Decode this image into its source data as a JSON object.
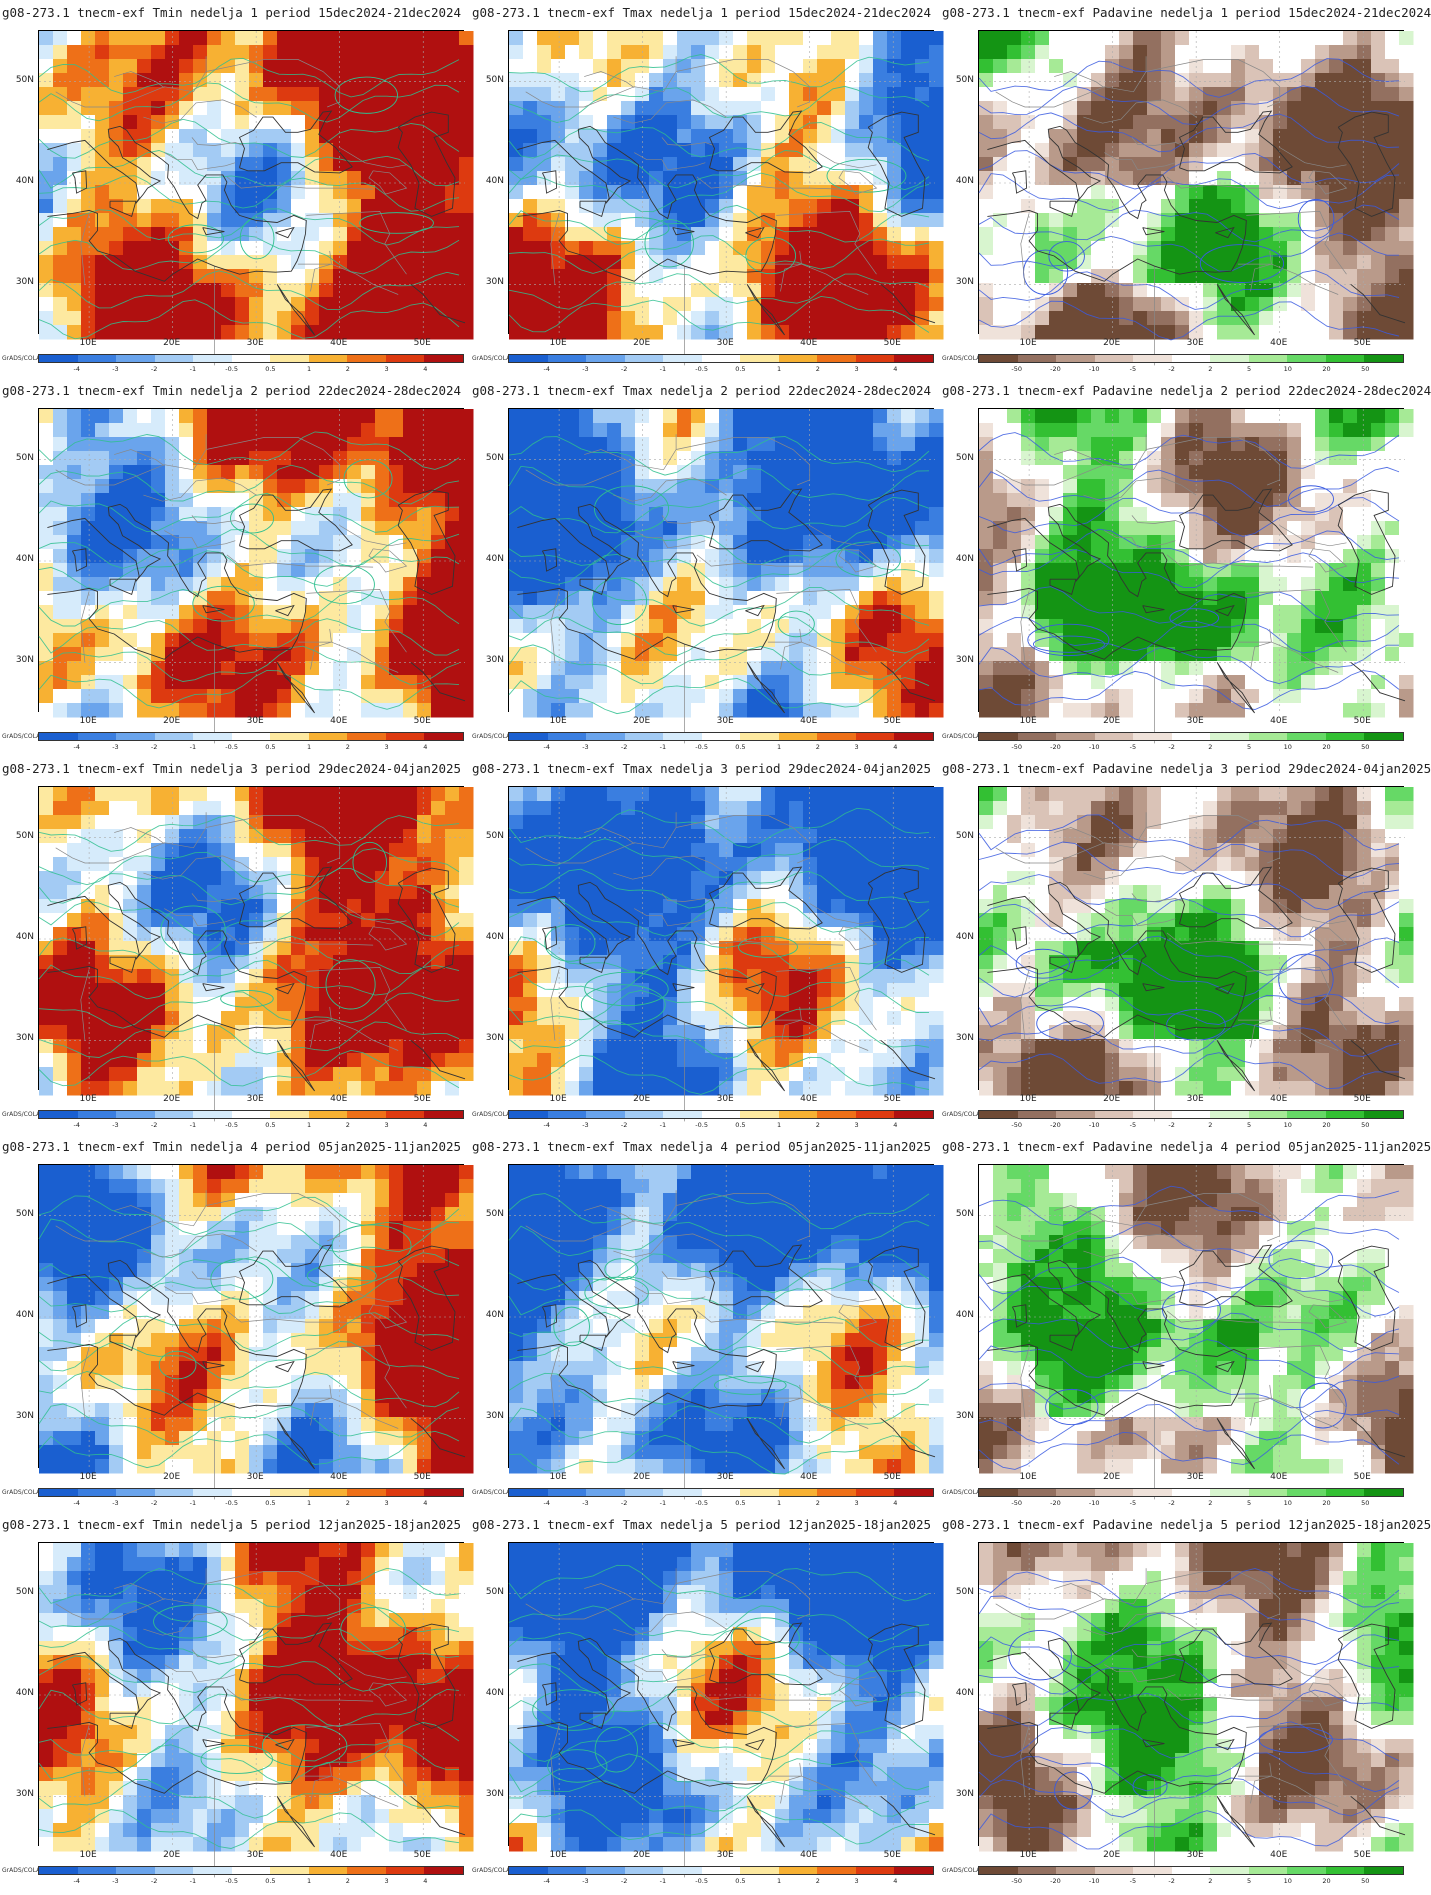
{
  "panels": [
    {
      "title": "g08-273.1 tnecm-exf Tmin nedelja 1 period 15dec2024-21dec2024",
      "kind": "tmin",
      "seed": 11,
      "bias": 0.75
    },
    {
      "title": "g08-273.1 tnecm-exf Tmax nedelja 1 period 15dec2024-21dec2024",
      "kind": "tmax",
      "seed": 12,
      "bias": 0.45
    },
    {
      "title": "g08-273.1 tnecm-exf Padavine nedelja 1 period 15dec2024-21dec2024",
      "kind": "pad",
      "seed": 13,
      "bias": 0.4
    },
    {
      "title": "g08-273.1 tnecm-exf Tmin nedelja 2 period 22dec2024-28dec2024",
      "kind": "tmin",
      "seed": 21,
      "bias": 0.62
    },
    {
      "title": "g08-273.1 tnecm-exf Tmax nedelja 2 period 22dec2024-28dec2024",
      "kind": "tmax",
      "seed": 22,
      "bias": 0.22
    },
    {
      "title": "g08-273.1 tnecm-exf Padavine nedelja 2 period 22dec2024-28dec2024",
      "kind": "pad",
      "seed": 23,
      "bias": 0.62
    },
    {
      "title": "g08-273.1 tnecm-exf Tmin nedelja 3 period 29dec2024-04jan2025",
      "kind": "tmin",
      "seed": 31,
      "bias": 0.68
    },
    {
      "title": "g08-273.1 tnecm-exf Tmax nedelja 3 period 29dec2024-04jan2025",
      "kind": "tmax",
      "seed": 32,
      "bias": 0.22
    },
    {
      "title": "g08-273.1 tnecm-exf Padavine nedelja 3 period 29dec2024-04jan2025",
      "kind": "pad",
      "seed": 33,
      "bias": 0.56
    },
    {
      "title": "g08-273.1 tnecm-exf Tmin nedelja 4 period 05jan2025-11jan2025",
      "kind": "tmin",
      "seed": 41,
      "bias": 0.55
    },
    {
      "title": "g08-273.1 tnecm-exf Tmax nedelja 4 period 05jan2025-11jan2025",
      "kind": "tmax",
      "seed": 42,
      "bias": 0.2
    },
    {
      "title": "g08-273.1 tnecm-exf Padavine nedelja 4 period 05jan2025-11jan2025",
      "kind": "pad",
      "seed": 43,
      "bias": 0.6
    },
    {
      "title": "g08-273.1 tnecm-exf Tmin nedelja 5 period 12jan2025-18jan2025",
      "kind": "tmin",
      "seed": 51,
      "bias": 0.66
    },
    {
      "title": "g08-273.1 tnecm-exf Tmax nedelja 5 period 12jan2025-18jan2025",
      "kind": "tmax",
      "seed": 52,
      "bias": 0.22
    },
    {
      "title": "g08-273.1 tnecm-exf Padavine nedelja 5 period 12jan2025-18jan2025",
      "kind": "pad",
      "seed": 53,
      "bias": 0.56
    }
  ],
  "lat_labels": [
    "50N",
    "40N",
    "30N"
  ],
  "lon_labels": [
    "10E",
    "20E",
    "30E",
    "40E",
    "50E"
  ],
  "grads_label": "GrADS/COLA",
  "temp_scale": {
    "ticks": [
      "-4",
      "-3",
      "-2",
      "-1",
      "-0.5",
      "0.5",
      "1",
      "2",
      "3",
      "4"
    ],
    "colors": [
      "#1a5fd0",
      "#3a7ee0",
      "#6aa4ec",
      "#a3cbf4",
      "#d6ebfb",
      "#ffffff",
      "#fde9a0",
      "#f7b133",
      "#ee7018",
      "#dd3a10",
      "#b01010"
    ]
  },
  "precip_scale": {
    "ticks": [
      "-50",
      "-20",
      "-10",
      "-5",
      "-2",
      "2",
      "5",
      "10",
      "20",
      "50"
    ],
    "colors": [
      "#6e4a36",
      "#937060",
      "#b99a8a",
      "#dac3b7",
      "#efe2da",
      "#ffffff",
      "#d8f5cf",
      "#a6ea96",
      "#66d966",
      "#33c033",
      "#149414"
    ]
  },
  "colors": {
    "temp_contour": "#2fbf8f",
    "precip_contour": "#3a5be0",
    "coast": "#333333",
    "border": "#888888",
    "grid": "#aaaaaa"
  }
}
